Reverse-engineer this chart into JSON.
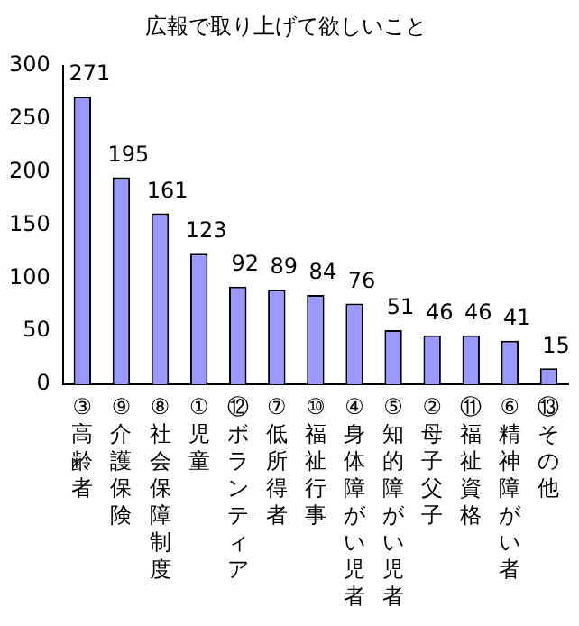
{
  "chart_data": {
    "type": "bar",
    "title": "広報で取り上げて欲しいこと",
    "categories": [
      "③高齢者",
      "⑨介護保険",
      "⑧社会保障制度",
      "①児童",
      "⑫ボランティア",
      "⑦低所得者",
      "⑩福祉行事",
      "④身体障がい児者",
      "⑤知的障がい児者",
      "②母子父子",
      "⑪福祉資格",
      "⑥精神障がい者",
      "⑬その他"
    ],
    "values": [
      271,
      195,
      161,
      123,
      92,
      89,
      84,
      76,
      51,
      46,
      46,
      41,
      15
    ],
    "color": "#9999ff",
    "data_labels": true,
    "ylim": [
      0,
      300
    ],
    "yticks": [
      0,
      50,
      100,
      150,
      200,
      250,
      300
    ],
    "grid": false,
    "legend": false
  }
}
